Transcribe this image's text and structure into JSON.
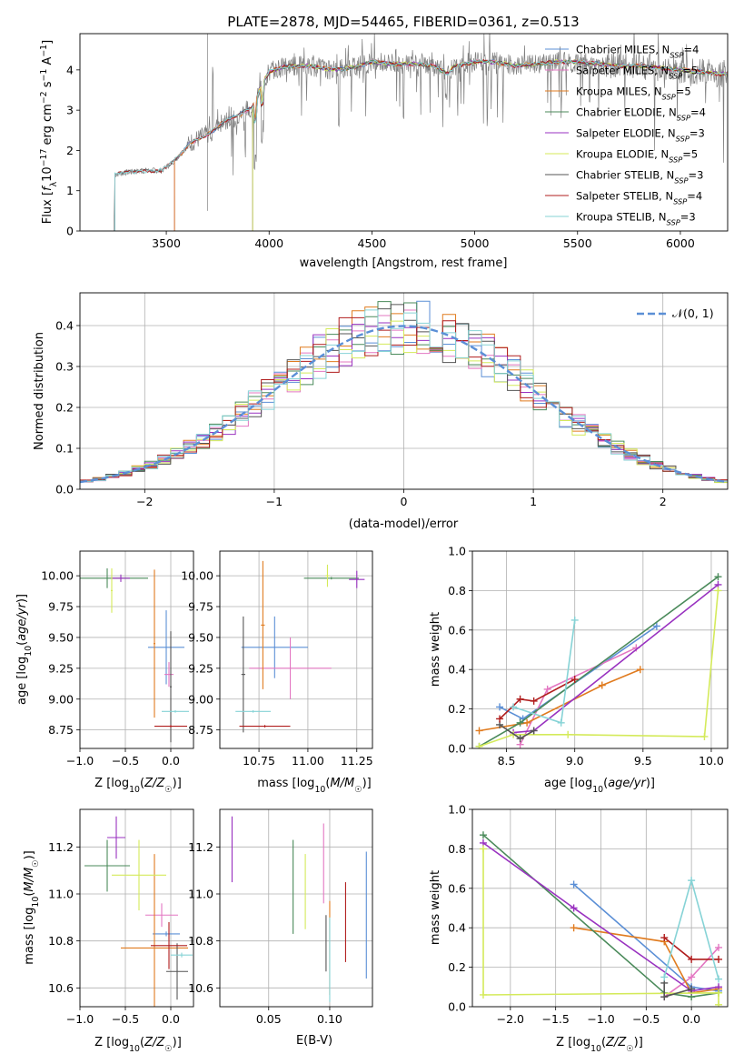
{
  "figure": {
    "title": "PLATE=2878, MJD=54465, FIBERID=0361, z=0.513"
  },
  "colors": {
    "Chabrier MILES": "#5b8fd6",
    "Salpeter MILES": "#e377c2",
    "Kroupa MILES": "#e07b1f",
    "Chabrier ELODIE": "#4a8a5a",
    "Salpeter ELODIE": "#9932c0",
    "Kroupa ELODIE": "#d4ea5a",
    "Chabrier STELIB": "#555555",
    "Salpeter STELIB": "#b01d1d",
    "Kroupa STELIB": "#86d3d6",
    "normal": "#5b8fd6"
  },
  "chart_data": [
    {
      "id": "spectrum",
      "type": "line",
      "title": "PLATE=2878, MJD=54465, FIBERID=0361, z=0.513",
      "xlabel": "wavelength [Angstrom, rest frame]",
      "ylabel": "Flux [f_λ 10^-17 erg cm^-2 s^-1 A^-1]",
      "xlim": [
        3080,
        6230
      ],
      "ylim": [
        0,
        4.9
      ],
      "xticks": [
        3500,
        4000,
        4500,
        5000,
        5500,
        6000
      ],
      "yticks": [
        0,
        1,
        2,
        3,
        4
      ],
      "grid": false,
      "legend_position": "right",
      "continuum_x": [
        3250,
        3300,
        3400,
        3480,
        3550,
        3620,
        3700,
        3780,
        3860,
        3920,
        3960,
        4000,
        4050,
        4100,
        4200,
        4300,
        4400,
        4500,
        4600,
        4700,
        4800,
        4870,
        4900,
        5000,
        5100,
        5200,
        5300,
        5400,
        5500,
        5600,
        5700,
        5800,
        5900,
        6000,
        6100,
        6200
      ],
      "continuum_y": [
        1.4,
        1.45,
        1.5,
        1.5,
        1.8,
        2.2,
        2.4,
        2.7,
        2.9,
        3.1,
        3.6,
        3.95,
        4.05,
        4.1,
        4.1,
        4.0,
        4.05,
        4.2,
        4.15,
        4.15,
        4.1,
        3.9,
        4.1,
        4.2,
        4.2,
        4.1,
        4.15,
        4.2,
        4.2,
        4.15,
        4.1,
        4.1,
        4.05,
        4.0,
        3.95,
        3.9
      ],
      "model_start_x": {
        "Chabrier MILES": 3540,
        "Salpeter MILES": 3540,
        "Kroupa MILES": 3540,
        "Chabrier ELODIE": 3920,
        "Salpeter ELODIE": 3920,
        "Kroupa ELODIE": 3920,
        "Chabrier STELIB": 3250,
        "Salpeter STELIB": 3250,
        "Kroupa STELIB": 3250
      },
      "legend": [
        "Chabrier MILES, N_SSP=4",
        "Salpeter MILES, N_SSP=5",
        "Kroupa MILES, N_SSP=5",
        "Chabrier ELODIE, N_SSP=4",
        "Salpeter ELODIE, N_SSP=3",
        "Kroupa ELODIE, N_SSP=5",
        "Chabrier STELIB, N_SSP=3",
        "Salpeter STELIB, N_SSP=4",
        "Kroupa STELIB, N_SSP=3"
      ],
      "legend_models": [
        "Chabrier MILES",
        "Salpeter MILES",
        "Kroupa MILES",
        "Chabrier ELODIE",
        "Salpeter ELODIE",
        "Kroupa ELODIE",
        "Chabrier STELIB",
        "Salpeter STELIB",
        "Kroupa STELIB"
      ]
    },
    {
      "id": "residuals",
      "type": "histogram",
      "xlabel": "(data-model)/error",
      "ylabel": "Normed distribution",
      "xlim": [
        -2.5,
        2.5
      ],
      "ylim": [
        0,
        0.48
      ],
      "xticks": [
        -2,
        -1,
        0,
        1,
        2
      ],
      "yticks": [
        0.0,
        0.1,
        0.2,
        0.3,
        0.4
      ],
      "grid": true,
      "legend": "𝒩(0, 1)",
      "legend_position": "top-right",
      "bin_width": 0.1,
      "curve": "normal(0,1)"
    },
    {
      "id": "age_vs_Z",
      "type": "errorbar",
      "xlabel": "Z [log10(Z/Z☉)]",
      "ylabel": "age  [log10(age/yr)]",
      "xlim": [
        -1.0,
        0.25
      ],
      "ylim": [
        8.6,
        10.2
      ],
      "xticks": [
        -1.0,
        -0.5,
        0.0
      ],
      "yticks": [
        8.75,
        9.0,
        9.25,
        9.5,
        9.75,
        10.0
      ],
      "grid": true,
      "points": [
        {
          "model": "Chabrier MILES",
          "x": -0.05,
          "y": 9.42,
          "xerr": 0.2,
          "yerr": 0.3
        },
        {
          "model": "Salpeter MILES",
          "x": -0.02,
          "y": 9.2,
          "xerr": 0.05,
          "yerr": 0.1
        },
        {
          "model": "Kroupa MILES",
          "x": -0.18,
          "y": 9.45,
          "xerr": 0.01,
          "yerr": 0.6
        },
        {
          "model": "Chabrier ELODIE",
          "x": -0.7,
          "y": 9.98,
          "xerr": 0.45,
          "yerr": 0.08
        },
        {
          "model": "Salpeter ELODIE",
          "x": -0.55,
          "y": 9.98,
          "xerr": 0.1,
          "yerr": 0.03
        },
        {
          "model": "Kroupa ELODIE",
          "x": -0.65,
          "y": 9.88,
          "xerr": 0.01,
          "yerr": 0.18
        },
        {
          "model": "Chabrier STELIB",
          "x": 0.0,
          "y": 9.1,
          "xerr": 0.01,
          "yerr": 0.45
        },
        {
          "model": "Salpeter STELIB",
          "x": 0.0,
          "y": 8.78,
          "xerr": 0.18,
          "yerr": 0.01
        },
        {
          "model": "Kroupa STELIB",
          "x": 0.05,
          "y": 8.9,
          "xerr": 0.15,
          "yerr": 0.01
        }
      ]
    },
    {
      "id": "age_vs_mass",
      "type": "errorbar",
      "xlabel": "mass [log10(M/M☉)]",
      "ylabel": "",
      "xlim": [
        10.55,
        11.33
      ],
      "ylim": [
        8.6,
        10.2
      ],
      "xticks": [
        10.75,
        11.0,
        11.25
      ],
      "yticks": [
        8.75,
        9.0,
        9.25,
        9.5,
        9.75,
        10.0
      ],
      "grid": true,
      "points": [
        {
          "model": "Chabrier MILES",
          "x": 10.83,
          "y": 9.42,
          "xerr": 0.17,
          "yerr": 0.25
        },
        {
          "model": "Salpeter MILES",
          "x": 10.91,
          "y": 9.25,
          "xerr": 0.21,
          "yerr": 0.25
        },
        {
          "model": "Kroupa MILES",
          "x": 10.77,
          "y": 9.6,
          "xerr": 0.01,
          "yerr": 0.52
        },
        {
          "model": "Chabrier ELODIE",
          "x": 11.12,
          "y": 9.98,
          "xerr": 0.14,
          "yerr": 0.01
        },
        {
          "model": "Salpeter ELODIE",
          "x": 11.25,
          "y": 9.97,
          "xerr": 0.04,
          "yerr": 0.07
        },
        {
          "model": "Kroupa ELODIE",
          "x": 11.1,
          "y": 10.0,
          "xerr": 0.01,
          "yerr": 0.09
        },
        {
          "model": "Chabrier STELIB",
          "x": 10.67,
          "y": 9.2,
          "xerr": 0.01,
          "yerr": 0.47
        },
        {
          "model": "Salpeter STELIB",
          "x": 10.78,
          "y": 8.78,
          "xerr": 0.13,
          "yerr": 0.01
        },
        {
          "model": "Kroupa STELIB",
          "x": 10.72,
          "y": 8.9,
          "xerr": 0.09,
          "yerr": 0.01
        }
      ]
    },
    {
      "id": "weight_vs_age",
      "type": "line",
      "xlabel": "age  [log10(age/yr)]",
      "ylabel": "mass weight",
      "xlim": [
        8.25,
        10.12
      ],
      "ylim": [
        0,
        1.0
      ],
      "xticks": [
        8.5,
        9.0,
        9.5,
        10.0
      ],
      "yticks": [
        0.0,
        0.2,
        0.4,
        0.6,
        0.8,
        1.0
      ],
      "grid": true,
      "series": [
        {
          "model": "Chabrier MILES",
          "x": [
            8.45,
            8.62,
            9.6
          ],
          "y": [
            0.21,
            0.15,
            0.62
          ]
        },
        {
          "model": "Salpeter MILES",
          "x": [
            8.6,
            8.8,
            9.45
          ],
          "y": [
            0.02,
            0.3,
            0.51
          ]
        },
        {
          "model": "Kroupa MILES",
          "x": [
            8.3,
            8.65,
            9.2,
            9.48
          ],
          "y": [
            0.09,
            0.13,
            0.32,
            0.4
          ]
        },
        {
          "model": "Chabrier ELODIE",
          "x": [
            8.3,
            8.6,
            10.05
          ],
          "y": [
            0.01,
            0.13,
            0.87
          ]
        },
        {
          "model": "Salpeter ELODIE",
          "x": [
            8.55,
            8.7,
            10.05
          ],
          "y": [
            0.08,
            0.09,
            0.83
          ]
        },
        {
          "model": "Kroupa ELODIE",
          "x": [
            8.3,
            8.55,
            8.95,
            9.95,
            10.05
          ],
          "y": [
            0.01,
            0.07,
            0.07,
            0.06,
            0.8
          ]
        },
        {
          "model": "Chabrier STELIB",
          "x": [
            8.45,
            8.6,
            8.7
          ],
          "y": [
            0.12,
            0.05,
            0.09
          ]
        },
        {
          "model": "Salpeter STELIB",
          "x": [
            8.45,
            8.6,
            8.7,
            9.0
          ],
          "y": [
            0.15,
            0.25,
            0.24,
            0.35
          ]
        },
        {
          "model": "Kroupa STELIB",
          "x": [
            8.55,
            8.9,
            9.0
          ],
          "y": [
            0.21,
            0.13,
            0.65
          ]
        }
      ]
    },
    {
      "id": "mass_vs_Z",
      "type": "errorbar",
      "xlabel": "Z [log10(Z/Z☉)]",
      "ylabel": "mass [log10(M/M☉)]",
      "xlim": [
        -1.0,
        0.25
      ],
      "ylim": [
        10.52,
        11.36
      ],
      "xticks": [
        -1.0,
        -0.5,
        0.0
      ],
      "yticks": [
        10.6,
        10.8,
        11.0,
        11.2
      ],
      "grid": true,
      "points": [
        {
          "model": "Chabrier MILES",
          "x": -0.05,
          "y": 10.83,
          "xerr": 0.15,
          "yerr": 0.01
        },
        {
          "model": "Salpeter MILES",
          "x": -0.1,
          "y": 10.91,
          "xerr": 0.18,
          "yerr": 0.05
        },
        {
          "model": "Kroupa MILES",
          "x": -0.18,
          "y": 10.77,
          "xerr": 0.37,
          "yerr": 0.4
        },
        {
          "model": "Chabrier ELODIE",
          "x": -0.7,
          "y": 11.12,
          "xerr": 0.25,
          "yerr": 0.11
        },
        {
          "model": "Salpeter ELODIE",
          "x": -0.6,
          "y": 11.24,
          "xerr": 0.1,
          "yerr": 0.09
        },
        {
          "model": "Kroupa ELODIE",
          "x": -0.35,
          "y": 11.08,
          "xerr": 0.3,
          "yerr": 0.15
        },
        {
          "model": "Chabrier STELIB",
          "x": 0.07,
          "y": 10.67,
          "xerr": 0.12,
          "yerr": 0.12
        },
        {
          "model": "Salpeter STELIB",
          "x": -0.02,
          "y": 10.78,
          "xerr": 0.2,
          "yerr": 0.1
        },
        {
          "model": "Kroupa STELIB",
          "x": 0.12,
          "y": 10.74,
          "xerr": 0.12,
          "yerr": 0.01
        }
      ]
    },
    {
      "id": "mass_vs_ebv",
      "type": "errorbar",
      "xlabel": "E(B-V)",
      "ylabel": "",
      "xlim": [
        0.01,
        0.135
      ],
      "ylim": [
        10.52,
        11.36
      ],
      "xticks": [
        0.05,
        0.1
      ],
      "yticks": [
        10.6,
        10.8,
        11.0,
        11.2
      ],
      "grid": true,
      "points": [
        {
          "model": "Chabrier MILES",
          "x": 0.13,
          "y": 10.91,
          "xerr": 0.0,
          "yerr": 0.27
        },
        {
          "model": "Salpeter MILES",
          "x": 0.095,
          "y": 11.13,
          "xerr": 0.0,
          "yerr": 0.17
        },
        {
          "model": "Kroupa MILES",
          "x": 0.1,
          "y": 10.77,
          "xerr": 0.0,
          "yerr": 0.2
        },
        {
          "model": "Chabrier ELODIE",
          "x": 0.07,
          "y": 11.03,
          "xerr": 0.0,
          "yerr": 0.2
        },
        {
          "model": "Salpeter ELODIE",
          "x": 0.02,
          "y": 11.19,
          "xerr": 0.0,
          "yerr": 0.14
        },
        {
          "model": "Kroupa ELODIE",
          "x": 0.08,
          "y": 11.01,
          "xerr": 0.0,
          "yerr": 0.16
        },
        {
          "model": "Chabrier STELIB",
          "x": 0.097,
          "y": 10.79,
          "xerr": 0.0,
          "yerr": 0.12
        },
        {
          "model": "Salpeter STELIB",
          "x": 0.113,
          "y": 10.88,
          "xerr": 0.0,
          "yerr": 0.17
        },
        {
          "model": "Kroupa STELIB",
          "x": 0.1,
          "y": 10.72,
          "xerr": 0.0,
          "yerr": 0.18
        }
      ]
    },
    {
      "id": "weight_vs_Z",
      "type": "line",
      "xlabel": "Z [log10(Z/Z☉)]",
      "ylabel": "mass weight",
      "xlim": [
        -2.42,
        0.4
      ],
      "ylim": [
        0,
        1.0
      ],
      "xticks": [
        -2.0,
        -1.5,
        -1.0,
        -0.5,
        0.0
      ],
      "yticks": [
        0.0,
        0.2,
        0.4,
        0.6,
        0.8,
        1.0
      ],
      "grid": true,
      "series": [
        {
          "model": "Chabrier MILES",
          "x": [
            -1.3,
            0.0,
            0.3
          ],
          "y": [
            0.62,
            0.1,
            0.08
          ]
        },
        {
          "model": "Salpeter MILES",
          "x": [
            -0.3,
            0.0,
            0.3
          ],
          "y": [
            0.05,
            0.15,
            0.3
          ]
        },
        {
          "model": "Kroupa MILES",
          "x": [
            -1.3,
            -0.3,
            0.0,
            0.3
          ],
          "y": [
            0.4,
            0.33,
            0.07,
            0.09
          ]
        },
        {
          "model": "Chabrier ELODIE",
          "x": [
            -2.3,
            -0.3,
            0.0,
            0.3
          ],
          "y": [
            0.87,
            0.07,
            0.05,
            0.07
          ]
        },
        {
          "model": "Salpeter ELODIE",
          "x": [
            -2.3,
            -1.3,
            0.0,
            0.3
          ],
          "y": [
            0.83,
            0.5,
            0.08,
            0.1
          ]
        },
        {
          "model": "Kroupa ELODIE",
          "x": [
            -2.3,
            -2.3,
            0.3,
            0.3
          ],
          "y": [
            0.8,
            0.06,
            0.07,
            0.01
          ]
        },
        {
          "model": "Chabrier STELIB",
          "x": [
            -0.3,
            -0.3,
            0.0
          ],
          "y": [
            0.12,
            0.05,
            0.09
          ]
        },
        {
          "model": "Salpeter STELIB",
          "x": [
            -0.3,
            0.0,
            0.3
          ],
          "y": [
            0.35,
            0.24,
            0.24
          ]
        },
        {
          "model": "Kroupa STELIB",
          "x": [
            -0.3,
            0.0,
            0.3
          ],
          "y": [
            0.15,
            0.64,
            0.14
          ]
        }
      ]
    }
  ]
}
